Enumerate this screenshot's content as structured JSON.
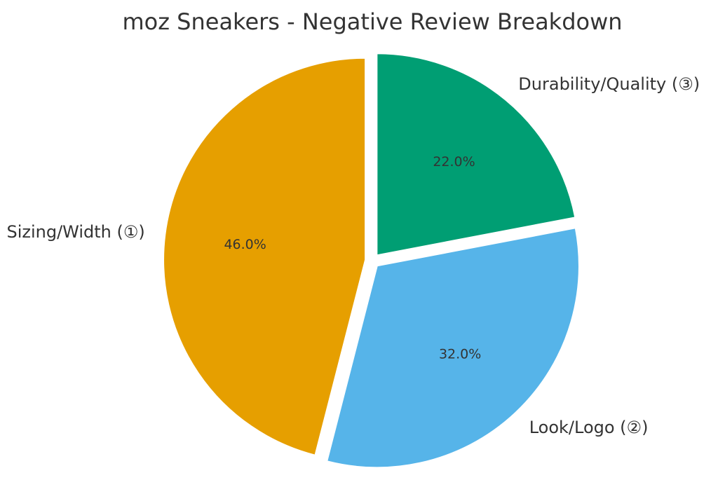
{
  "chart_data": {
    "type": "pie",
    "title": "moz Sneakers - Negative Review Breakdown",
    "slices": [
      {
        "label": "Durability/Quality (③)",
        "value": 22.0,
        "pct_label": "22.0%",
        "color": "#009E73"
      },
      {
        "label": "Look/Logo (②)",
        "value": 32.0,
        "pct_label": "32.0%",
        "color": "#56B4E9"
      },
      {
        "label": "Sizing/Width (①)",
        "value": 46.0,
        "pct_label": "46.0%",
        "color": "#E69F00"
      }
    ],
    "exploded": true,
    "start_angle": "12 o'clock",
    "direction": "clockwise",
    "legend": "none"
  }
}
